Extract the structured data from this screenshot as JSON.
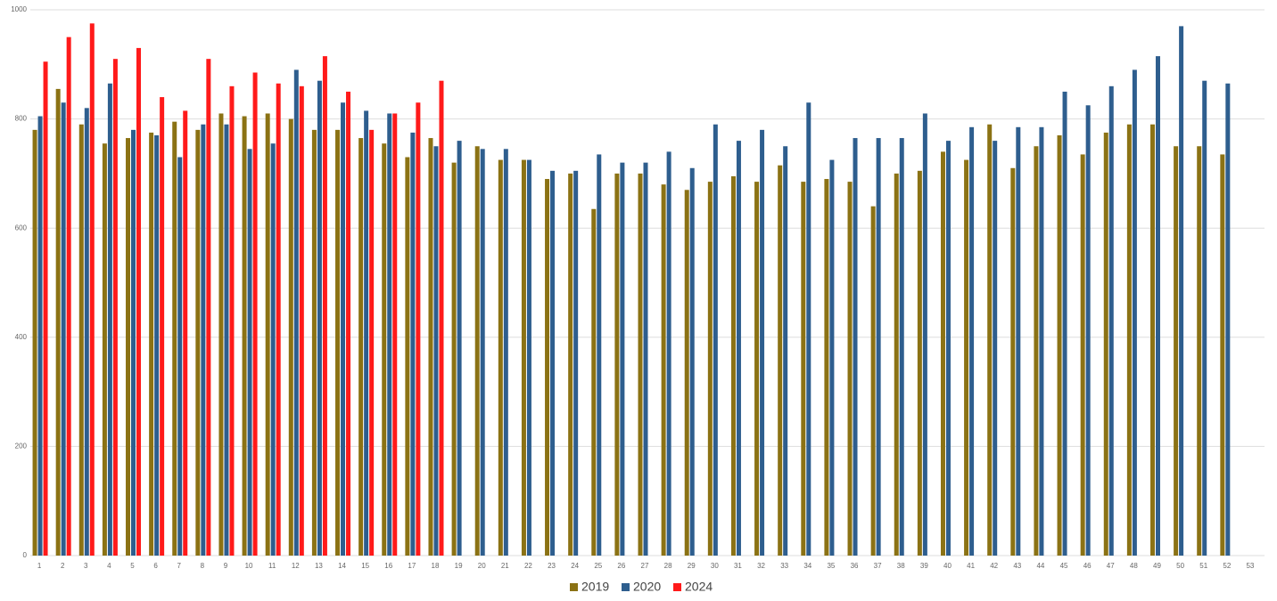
{
  "chart_data": {
    "type": "bar",
    "categories": [
      "1",
      "2",
      "3",
      "4",
      "5",
      "6",
      "7",
      "8",
      "9",
      "10",
      "11",
      "12",
      "13",
      "14",
      "15",
      "16",
      "17",
      "18",
      "19",
      "20",
      "21",
      "22",
      "23",
      "24",
      "25",
      "26",
      "27",
      "28",
      "29",
      "30",
      "31",
      "32",
      "33",
      "34",
      "35",
      "36",
      "37",
      "38",
      "39",
      "40",
      "41",
      "42",
      "43",
      "44",
      "45",
      "46",
      "47",
      "48",
      "49",
      "50",
      "51",
      "52",
      "53"
    ],
    "series": [
      {
        "name": "2019",
        "color": "#8b7214",
        "values": [
          780,
          855,
          790,
          755,
          765,
          775,
          795,
          780,
          810,
          805,
          810,
          800,
          780,
          780,
          765,
          755,
          730,
          765,
          720,
          750,
          725,
          725,
          690,
          700,
          635,
          700,
          700,
          680,
          670,
          685,
          695,
          685,
          715,
          685,
          690,
          685,
          640,
          700,
          705,
          740,
          725,
          790,
          710,
          750,
          770,
          735,
          775,
          790,
          790,
          750,
          750,
          735,
          null
        ]
      },
      {
        "name": "2020",
        "color": "#2e5e8e",
        "values": [
          805,
          830,
          820,
          865,
          780,
          770,
          730,
          790,
          790,
          745,
          755,
          890,
          870,
          830,
          815,
          810,
          775,
          750,
          760,
          745,
          745,
          725,
          705,
          705,
          735,
          720,
          720,
          740,
          710,
          790,
          760,
          780,
          750,
          830,
          725,
          765,
          765,
          765,
          810,
          760,
          785,
          760,
          785,
          785,
          850,
          825,
          860,
          890,
          915,
          970,
          870,
          865,
          null
        ]
      },
      {
        "name": "2024",
        "color": "#ff1a1a",
        "values": [
          905,
          950,
          975,
          910,
          930,
          840,
          815,
          910,
          860,
          885,
          865,
          860,
          915,
          850,
          780,
          810,
          830,
          870,
          null,
          null,
          null,
          null,
          null,
          null,
          null,
          null,
          null,
          null,
          null,
          null,
          null,
          null,
          null,
          null,
          null,
          null,
          null,
          null,
          null,
          null,
          null,
          null,
          null,
          null,
          null,
          null,
          null,
          null,
          null,
          null,
          null,
          null,
          null
        ]
      }
    ],
    "ylim": [
      0,
      1000
    ],
    "yticks": [
      0,
      200,
      400,
      600,
      800,
      1000
    ],
    "grid": true,
    "legend": "bottom"
  }
}
